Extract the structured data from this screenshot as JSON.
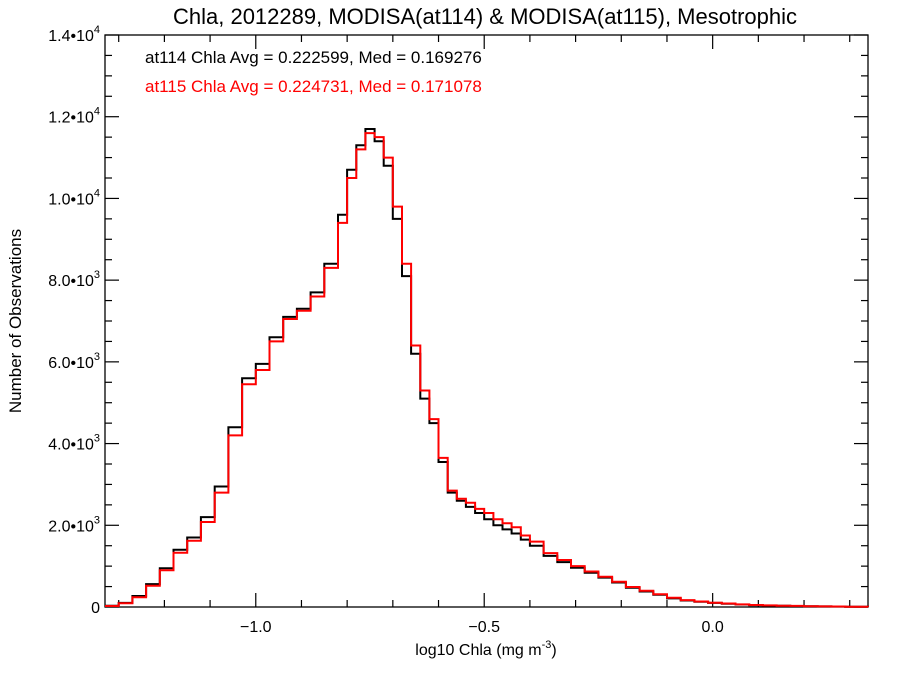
{
  "chart_data": {
    "type": "line",
    "title": "Chla, 2012289, MODISA(at114) & MODISA(at115), Mesotrophic",
    "xlabel_main": "log10 Chla (mg m",
    "xlabel_sup": "-3",
    "xlabel_close": ")",
    "ylabel": "Number of Observations",
    "xlim": [
      -1.33,
      0.34
    ],
    "ylim": [
      0,
      14000
    ],
    "x_ticks": [
      {
        "value": -1.0,
        "label": "−1.0"
      },
      {
        "value": -0.5,
        "label": "−0.5"
      },
      {
        "value": 0.0,
        "label": "0.0"
      }
    ],
    "y_ticks": [
      {
        "value": 0,
        "mant": "0",
        "exp": ""
      },
      {
        "value": 2000,
        "mant": "2.0•10",
        "exp": "3"
      },
      {
        "value": 4000,
        "mant": "4.0•10",
        "exp": "3"
      },
      {
        "value": 6000,
        "mant": "6.0•10",
        "exp": "3"
      },
      {
        "value": 8000,
        "mant": "8.0•10",
        "exp": "3"
      },
      {
        "value": 10000,
        "mant": "1.0•10",
        "exp": "4"
      },
      {
        "value": 12000,
        "mant": "1.2•10",
        "exp": "4"
      },
      {
        "value": 14000,
        "mant": "1.4•10",
        "exp": "4"
      }
    ],
    "annotations": [
      {
        "text": "at114 Chla Avg = 0.222599, Med = 0.169276",
        "color": "#000000"
      },
      {
        "text": "at115 Chla Avg = 0.224731, Med = 0.171078",
        "color": "#ff0000"
      }
    ],
    "series": [
      {
        "color": "#000000",
        "x": [
          -1.33,
          -1.3,
          -1.27,
          -1.24,
          -1.21,
          -1.18,
          -1.15,
          -1.12,
          -1.09,
          -1.06,
          -1.03,
          -1.0,
          -0.97,
          -0.94,
          -0.91,
          -0.88,
          -0.85,
          -0.82,
          -0.8,
          -0.78,
          -0.76,
          -0.74,
          -0.72,
          -0.7,
          -0.68,
          -0.66,
          -0.64,
          -0.62,
          -0.6,
          -0.58,
          -0.56,
          -0.54,
          -0.52,
          -0.5,
          -0.48,
          -0.46,
          -0.44,
          -0.42,
          -0.4,
          -0.37,
          -0.34,
          -0.31,
          -0.28,
          -0.25,
          -0.22,
          -0.19,
          -0.16,
          -0.13,
          -0.1,
          -0.07,
          -0.04,
          -0.01,
          0.02,
          0.05,
          0.08,
          0.11,
          0.14,
          0.17,
          0.2,
          0.23,
          0.26,
          0.29,
          0.32,
          0.34
        ],
        "y": [
          30,
          100,
          270,
          560,
          950,
          1400,
          1700,
          2200,
          2950,
          4400,
          5600,
          5950,
          6600,
          7100,
          7300,
          7700,
          8400,
          9600,
          10700,
          11300,
          11700,
          11400,
          10800,
          9500,
          8100,
          6200,
          5100,
          4500,
          3550,
          2800,
          2600,
          2450,
          2300,
          2150,
          2000,
          1900,
          1800,
          1650,
          1500,
          1250,
          1100,
          960,
          840,
          720,
          600,
          470,
          380,
          300,
          210,
          160,
          130,
          100,
          80,
          60,
          45,
          35,
          30,
          25,
          20,
          15,
          12,
          8,
          5,
          3
        ]
      },
      {
        "color": "#ff0000",
        "x": [
          -1.33,
          -1.3,
          -1.27,
          -1.24,
          -1.21,
          -1.18,
          -1.15,
          -1.12,
          -1.09,
          -1.06,
          -1.03,
          -1.0,
          -0.97,
          -0.94,
          -0.91,
          -0.88,
          -0.85,
          -0.82,
          -0.8,
          -0.78,
          -0.76,
          -0.74,
          -0.72,
          -0.7,
          -0.68,
          -0.66,
          -0.64,
          -0.62,
          -0.6,
          -0.58,
          -0.56,
          -0.54,
          -0.52,
          -0.5,
          -0.48,
          -0.46,
          -0.44,
          -0.42,
          -0.4,
          -0.37,
          -0.34,
          -0.31,
          -0.28,
          -0.25,
          -0.22,
          -0.19,
          -0.16,
          -0.13,
          -0.1,
          -0.07,
          -0.04,
          -0.01,
          0.02,
          0.05,
          0.08,
          0.11,
          0.14,
          0.17,
          0.2,
          0.23,
          0.26,
          0.29,
          0.32,
          0.34
        ],
        "y": [
          25,
          90,
          240,
          520,
          900,
          1330,
          1620,
          2080,
          2800,
          4200,
          5450,
          5800,
          6500,
          7050,
          7250,
          7600,
          8300,
          9400,
          10500,
          11200,
          11600,
          11500,
          11000,
          9800,
          8400,
          6400,
          5300,
          4600,
          3650,
          2850,
          2650,
          2550,
          2400,
          2300,
          2150,
          2050,
          1950,
          1750,
          1600,
          1320,
          1150,
          1000,
          870,
          740,
          620,
          490,
          400,
          310,
          225,
          170,
          135,
          105,
          85,
          63,
          48,
          38,
          32,
          26,
          20,
          15,
          12,
          8,
          5,
          3
        ]
      }
    ]
  }
}
